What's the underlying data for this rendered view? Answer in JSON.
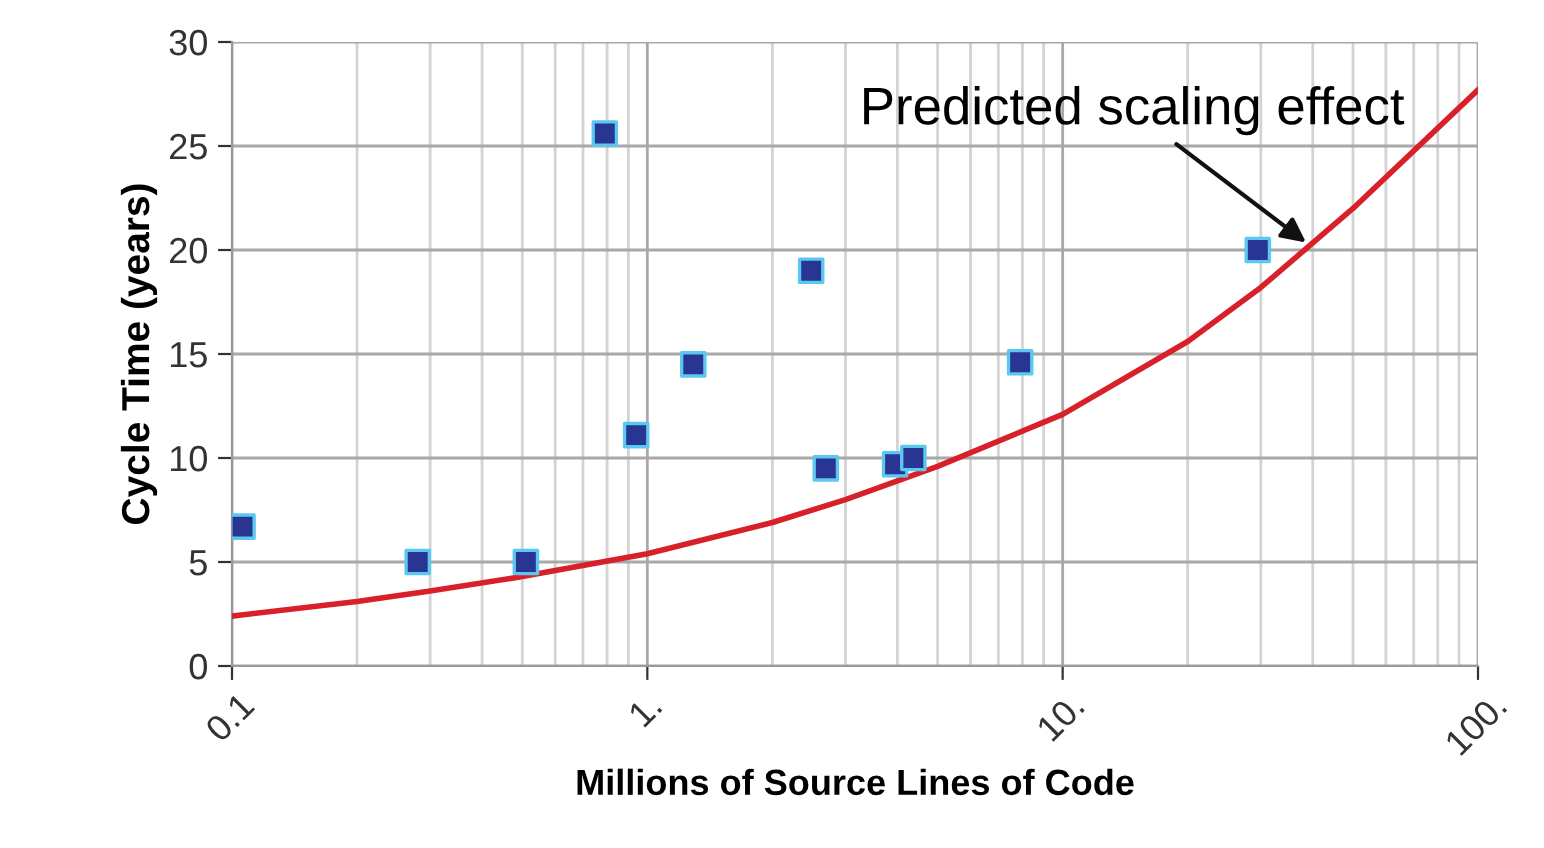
{
  "chart_data": {
    "type": "scatter",
    "xlabel": "Millions of Source Lines of Code",
    "ylabel": "Cycle Time (years)",
    "log": "x",
    "xlim": [
      0.1,
      100
    ],
    "ylim": [
      0,
      30
    ],
    "xticks": [
      {
        "value": 0.1,
        "label": "0.1"
      },
      {
        "value": 1,
        "label": "1."
      },
      {
        "value": 10,
        "label": "10."
      },
      {
        "value": 100,
        "label": "100."
      }
    ],
    "yticks": [
      0,
      5,
      10,
      15,
      20,
      25,
      30
    ],
    "grid": true,
    "series": [
      {
        "marker": "square",
        "color": "#283593",
        "x": [
          0.106,
          0.28,
          0.51,
          0.79,
          0.94,
          1.29,
          2.48,
          2.69,
          3.95,
          4.37,
          7.9,
          29.5
        ],
        "values": [
          6.7,
          5.0,
          5.0,
          25.6,
          11.1,
          14.5,
          19.0,
          9.5,
          9.7,
          10.0,
          14.6,
          20.0
        ]
      },
      {
        "type": "line",
        "color": "#d7202a",
        "x": [
          0.1,
          0.2,
          0.3,
          0.5,
          1,
          2,
          3,
          5,
          10,
          20,
          30,
          50,
          100
        ],
        "values": [
          2.4,
          3.1,
          3.6,
          4.3,
          5.4,
          6.9,
          8.0,
          9.6,
          12.1,
          15.6,
          18.2,
          22.0,
          27.7
        ]
      }
    ],
    "annotations": [
      {
        "text": "Predicted scaling effect",
        "x": 39.5,
        "y": 20.2
      }
    ]
  }
}
